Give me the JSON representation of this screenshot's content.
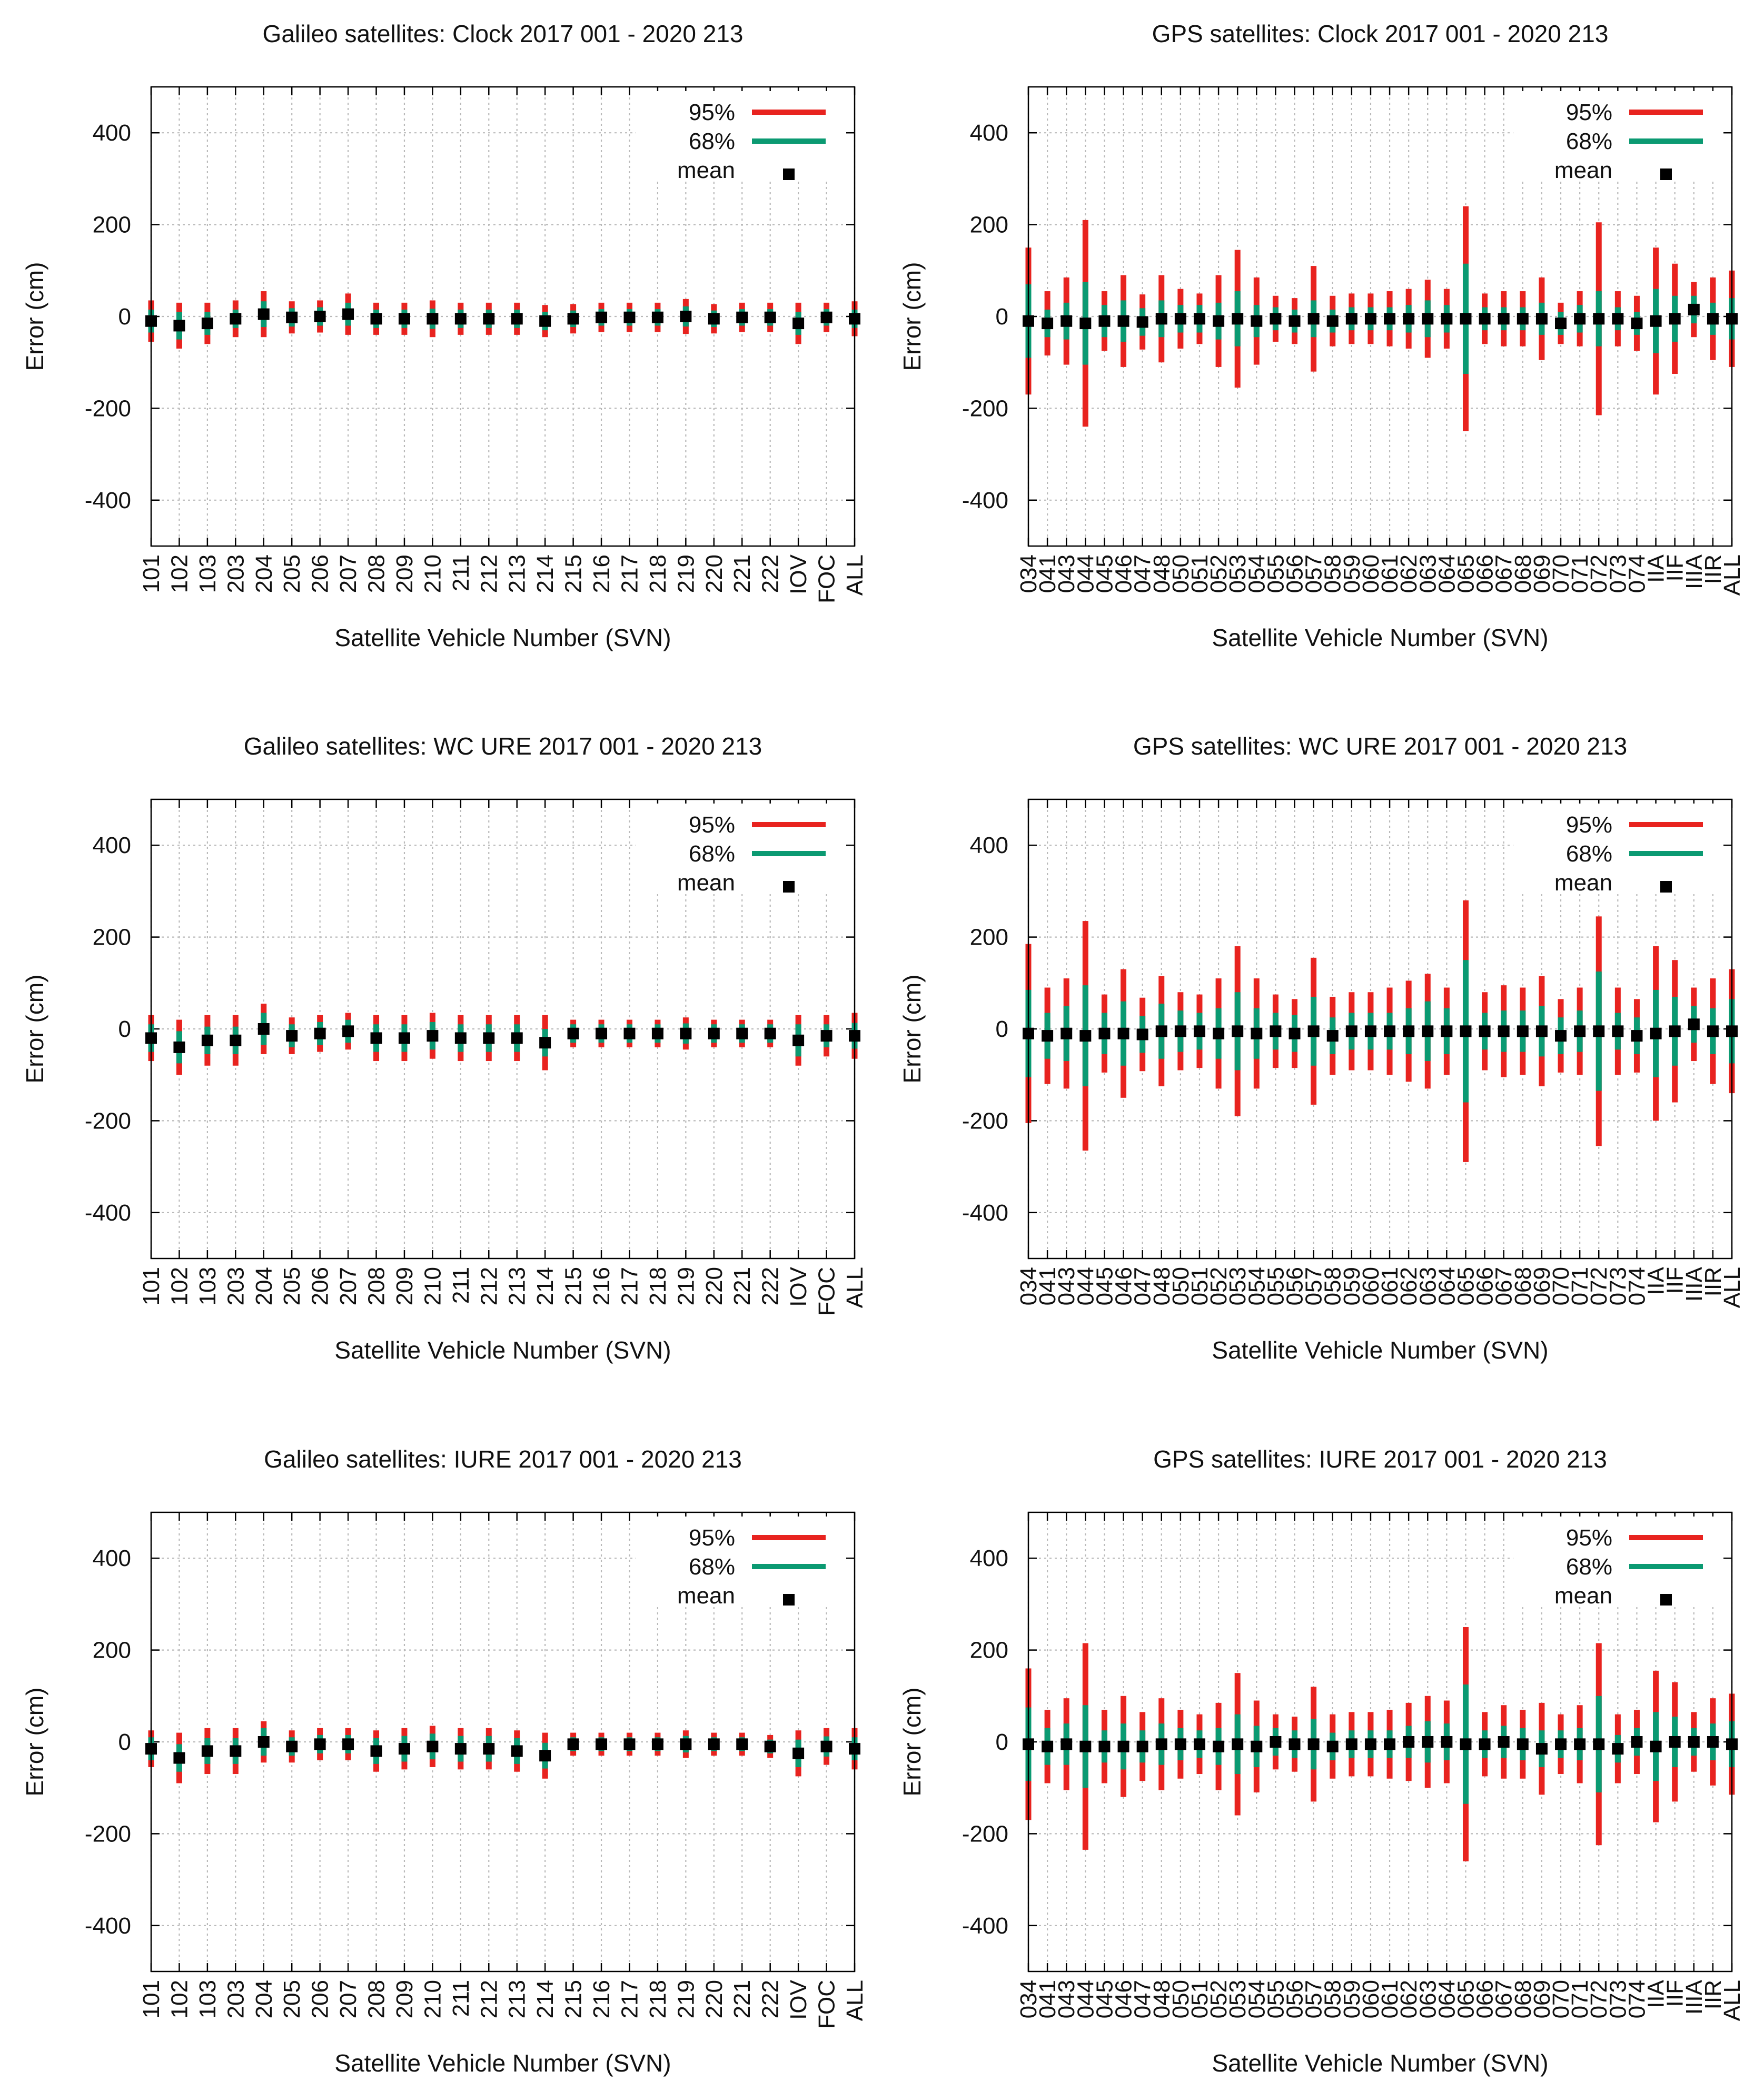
{
  "chart_data": [
    {
      "type": "errorbar",
      "title": "Galileo satellites: Clock 2017 001 - 2020 213",
      "xlabel": "Satellite Vehicle Number (SVN)",
      "ylabel": "Error (cm)",
      "ylim": [
        -500,
        500
      ],
      "yticks": [
        400,
        200,
        0,
        -200,
        -400
      ],
      "grid": true,
      "legend": [
        {
          "label": "95%",
          "color": "#e8231f"
        },
        {
          "label": "68%",
          "color": "#0b9a72"
        },
        {
          "label": "mean",
          "color": "#000000"
        }
      ],
      "legend_position": "top-right",
      "categories": [
        "101",
        "102",
        "103",
        "203",
        "204",
        "205",
        "206",
        "207",
        "208",
        "209",
        "210",
        "211",
        "212",
        "213",
        "214",
        "215",
        "216",
        "217",
        "218",
        "219",
        "220",
        "221",
        "222",
        "IOV",
        "FOC",
        "ALL"
      ],
      "mean": [
        -10,
        -20,
        -15,
        -5,
        5,
        -2,
        0,
        5,
        -5,
        -5,
        -5,
        -5,
        -5,
        -5,
        -10,
        -5,
        -2,
        -2,
        -2,
        0,
        -5,
        -2,
        -2,
        -15,
        -2,
        -5
      ],
      "p68": [
        25,
        30,
        25,
        20,
        28,
        20,
        20,
        25,
        20,
        20,
        22,
        20,
        20,
        20,
        20,
        18,
        18,
        18,
        18,
        22,
        18,
        18,
        18,
        25,
        18,
        20
      ],
      "p95": [
        45,
        50,
        45,
        40,
        50,
        35,
        35,
        45,
        35,
        35,
        40,
        35,
        35,
        35,
        35,
        32,
        32,
        32,
        32,
        38,
        32,
        32,
        32,
        45,
        32,
        38
      ]
    },
    {
      "type": "errorbar",
      "title": "GPS satellites: Clock 2017 001 - 2020 213",
      "xlabel": "Satellite Vehicle Number (SVN)",
      "ylabel": "Error (cm)",
      "ylim": [
        -500,
        500
      ],
      "yticks": [
        400,
        200,
        0,
        -200,
        -400
      ],
      "grid": true,
      "legend": [
        {
          "label": "95%",
          "color": "#e8231f"
        },
        {
          "label": "68%",
          "color": "#0b9a72"
        },
        {
          "label": "mean",
          "color": "#000000"
        }
      ],
      "legend_position": "top-right",
      "categories": [
        "034",
        "041",
        "043",
        "044",
        "045",
        "046",
        "047",
        "048",
        "050",
        "051",
        "052",
        "053",
        "054",
        "055",
        "056",
        "057",
        "058",
        "059",
        "060",
        "061",
        "062",
        "063",
        "064",
        "065",
        "066",
        "067",
        "068",
        "069",
        "070",
        "071",
        "072",
        "073",
        "074",
        "IIA",
        "IIF",
        "IIIA",
        "IIR",
        "ALL"
      ],
      "mean": [
        -10,
        -15,
        -10,
        -15,
        -10,
        -10,
        -12,
        -5,
        -5,
        -5,
        -10,
        -5,
        -10,
        -5,
        -10,
        -5,
        -10,
        -5,
        -5,
        -5,
        -5,
        -5,
        -5,
        -5,
        -5,
        -5,
        -5,
        -5,
        -15,
        -5,
        -5,
        -5,
        -15,
        -10,
        -5,
        15,
        -5,
        -5
      ],
      "p68": [
        80,
        30,
        40,
        90,
        35,
        45,
        30,
        40,
        30,
        30,
        40,
        60,
        35,
        25,
        25,
        40,
        25,
        25,
        25,
        25,
        30,
        40,
        30,
        120,
        25,
        25,
        25,
        35,
        25,
        30,
        60,
        25,
        25,
        70,
        50,
        30,
        35,
        45
      ],
      "p95": [
        160,
        70,
        95,
        225,
        65,
        100,
        60,
        95,
        65,
        55,
        100,
        150,
        95,
        50,
        50,
        115,
        55,
        55,
        55,
        60,
        65,
        85,
        65,
        245,
        55,
        60,
        60,
        90,
        45,
        60,
        210,
        60,
        60,
        160,
        120,
        60,
        90,
        105
      ]
    },
    {
      "type": "errorbar",
      "title": "Galileo satellites: WC URE 2017 001 - 2020 213",
      "xlabel": "Satellite Vehicle Number (SVN)",
      "ylabel": "Error (cm)",
      "ylim": [
        -500,
        500
      ],
      "yticks": [
        400,
        200,
        0,
        -200,
        -400
      ],
      "grid": true,
      "legend": [
        {
          "label": "95%",
          "color": "#e8231f"
        },
        {
          "label": "68%",
          "color": "#0b9a72"
        },
        {
          "label": "mean",
          "color": "#000000"
        }
      ],
      "legend_position": "top-right",
      "categories": [
        "101",
        "102",
        "103",
        "203",
        "204",
        "205",
        "206",
        "207",
        "208",
        "209",
        "210",
        "211",
        "212",
        "213",
        "214",
        "215",
        "216",
        "217",
        "218",
        "219",
        "220",
        "221",
        "222",
        "IOV",
        "FOC",
        "ALL"
      ],
      "mean": [
        -20,
        -40,
        -25,
        -25,
        0,
        -15,
        -10,
        -5,
        -20,
        -20,
        -15,
        -20,
        -20,
        -20,
        -30,
        -10,
        -10,
        -10,
        -10,
        -10,
        -10,
        -10,
        -10,
        -25,
        -15,
        -15
      ],
      "p68": [
        30,
        35,
        30,
        30,
        35,
        25,
        25,
        25,
        30,
        30,
        30,
        30,
        30,
        30,
        30,
        20,
        20,
        20,
        20,
        22,
        20,
        20,
        20,
        35,
        25,
        28
      ],
      "p95": [
        50,
        60,
        55,
        55,
        55,
        40,
        40,
        40,
        50,
        50,
        50,
        50,
        50,
        50,
        60,
        30,
        30,
        30,
        30,
        35,
        30,
        30,
        30,
        55,
        45,
        50
      ]
    },
    {
      "type": "errorbar",
      "title": "GPS satellites: WC URE 2017 001 - 2020 213",
      "xlabel": "Satellite Vehicle Number (SVN)",
      "ylabel": "Error (cm)",
      "ylim": [
        -500,
        500
      ],
      "yticks": [
        400,
        200,
        0,
        -200,
        -400
      ],
      "grid": true,
      "legend": [
        {
          "label": "95%",
          "color": "#e8231f"
        },
        {
          "label": "68%",
          "color": "#0b9a72"
        },
        {
          "label": "mean",
          "color": "#000000"
        }
      ],
      "legend_position": "top-right",
      "categories": [
        "034",
        "041",
        "043",
        "044",
        "045",
        "046",
        "047",
        "048",
        "050",
        "051",
        "052",
        "053",
        "054",
        "055",
        "056",
        "057",
        "058",
        "059",
        "060",
        "061",
        "062",
        "063",
        "064",
        "065",
        "066",
        "067",
        "068",
        "069",
        "070",
        "071",
        "072",
        "073",
        "074",
        "IIA",
        "IIF",
        "IIIA",
        "IIR",
        "ALL"
      ],
      "mean": [
        -10,
        -15,
        -10,
        -15,
        -10,
        -10,
        -12,
        -5,
        -5,
        -5,
        -10,
        -5,
        -10,
        -5,
        -10,
        -5,
        -15,
        -5,
        -5,
        -5,
        -5,
        -5,
        -5,
        -5,
        -5,
        -5,
        -5,
        -5,
        -15,
        -5,
        -5,
        -5,
        -15,
        -10,
        -5,
        10,
        -5,
        -5
      ],
      "p68": [
        95,
        50,
        60,
        110,
        45,
        70,
        40,
        60,
        45,
        40,
        55,
        85,
        55,
        40,
        40,
        75,
        40,
        40,
        40,
        40,
        50,
        65,
        50,
        155,
        40,
        45,
        45,
        55,
        40,
        45,
        130,
        40,
        40,
        95,
        75,
        40,
        50,
        70
      ],
      "p95": [
        195,
        105,
        120,
        250,
        85,
        140,
        80,
        120,
        85,
        80,
        120,
        185,
        120,
        80,
        75,
        160,
        85,
        85,
        85,
        95,
        110,
        125,
        95,
        285,
        85,
        100,
        95,
        120,
        80,
        95,
        250,
        95,
        80,
        190,
        155,
        80,
        115,
        135
      ]
    },
    {
      "type": "errorbar",
      "title": "Galileo satellites: IURE 2017 001 - 2020 213",
      "xlabel": "Satellite Vehicle Number (SVN)",
      "ylabel": "Error (cm)",
      "ylim": [
        -500,
        500
      ],
      "yticks": [
        400,
        200,
        0,
        -200,
        -400
      ],
      "grid": true,
      "legend": [
        {
          "label": "95%",
          "color": "#e8231f"
        },
        {
          "label": "68%",
          "color": "#0b9a72"
        },
        {
          "label": "mean",
          "color": "#000000"
        }
      ],
      "legend_position": "top-right",
      "categories": [
        "101",
        "102",
        "103",
        "203",
        "204",
        "205",
        "206",
        "207",
        "208",
        "209",
        "210",
        "211",
        "212",
        "213",
        "214",
        "215",
        "216",
        "217",
        "218",
        "219",
        "220",
        "221",
        "222",
        "IOV",
        "FOC",
        "ALL"
      ],
      "mean": [
        -15,
        -35,
        -20,
        -20,
        0,
        -10,
        -5,
        -5,
        -20,
        -15,
        -10,
        -15,
        -15,
        -20,
        -30,
        -5,
        -5,
        -5,
        -5,
        -5,
        -5,
        -5,
        -10,
        -25,
        -10,
        -15
      ],
      "p68": [
        25,
        30,
        28,
        28,
        30,
        20,
        20,
        20,
        28,
        28,
        28,
        28,
        28,
        28,
        28,
        15,
        15,
        15,
        15,
        18,
        15,
        15,
        15,
        30,
        22,
        25
      ],
      "p95": [
        40,
        55,
        50,
        50,
        45,
        35,
        35,
        35,
        45,
        45,
        45,
        45,
        45,
        45,
        50,
        25,
        25,
        25,
        25,
        30,
        25,
        25,
        25,
        50,
        40,
        45
      ]
    },
    {
      "type": "errorbar",
      "title": "GPS satellites: IURE 2017 001 - 2020 213",
      "xlabel": "Satellite Vehicle Number (SVN)",
      "ylabel": "Error (cm)",
      "ylim": [
        -500,
        500
      ],
      "yticks": [
        400,
        200,
        0,
        -200,
        -400
      ],
      "grid": true,
      "legend": [
        {
          "label": "95%",
          "color": "#e8231f"
        },
        {
          "label": "68%",
          "color": "#0b9a72"
        },
        {
          "label": "mean",
          "color": "#000000"
        }
      ],
      "legend_position": "top-right",
      "categories": [
        "034",
        "041",
        "043",
        "044",
        "045",
        "046",
        "047",
        "048",
        "050",
        "051",
        "052",
        "053",
        "054",
        "055",
        "056",
        "057",
        "058",
        "059",
        "060",
        "061",
        "062",
        "063",
        "064",
        "065",
        "066",
        "067",
        "068",
        "069",
        "070",
        "071",
        "072",
        "073",
        "074",
        "IIA",
        "IIF",
        "IIIA",
        "IIR",
        "ALL"
      ],
      "mean": [
        -5,
        -10,
        -5,
        -10,
        -10,
        -10,
        -10,
        -5,
        -5,
        -5,
        -10,
        -5,
        -10,
        0,
        -5,
        -5,
        -10,
        -5,
        -5,
        -5,
        0,
        0,
        0,
        -5,
        -5,
        0,
        -5,
        -15,
        -5,
        -5,
        -5,
        -15,
        0,
        -10,
        0,
        0,
        0,
        -5
      ],
      "p68": [
        80,
        40,
        45,
        90,
        35,
        50,
        35,
        45,
        35,
        30,
        40,
        65,
        45,
        30,
        30,
        55,
        30,
        30,
        30,
        30,
        35,
        45,
        40,
        130,
        30,
        35,
        35,
        40,
        30,
        35,
        105,
        30,
        30,
        75,
        55,
        30,
        40,
        50
      ],
      "p95": [
        165,
        80,
        100,
        225,
        80,
        110,
        75,
        100,
        75,
        65,
        95,
        155,
        100,
        60,
        60,
        125,
        70,
        70,
        70,
        75,
        85,
        100,
        90,
        255,
        70,
        80,
        75,
        100,
        65,
        85,
        220,
        75,
        70,
        165,
        130,
        65,
        95,
        110
      ]
    }
  ]
}
